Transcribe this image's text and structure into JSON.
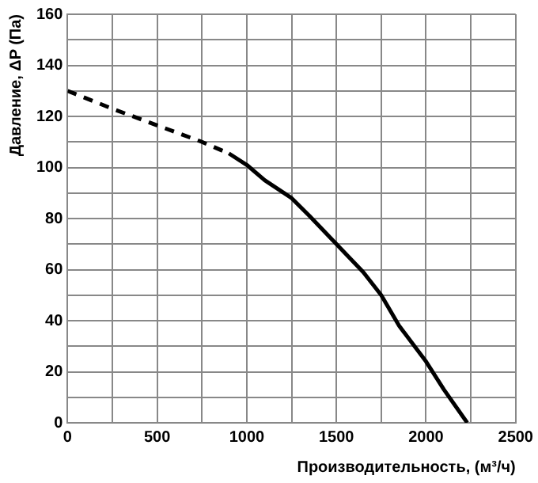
{
  "chart_data": {
    "type": "line",
    "xlabel": "Производительность, (м³/ч)",
    "ylabel": "Давление, ΔP (Па)",
    "xlim": [
      0,
      2500
    ],
    "ylim": [
      0,
      160
    ],
    "xticks": [
      0,
      {
        "value": 250,
        "label": null
      },
      500,
      {
        "value": 750,
        "label": null
      },
      1000,
      {
        "value": 1250,
        "label": null
      },
      1500,
      {
        "value": 1750,
        "label": null
      },
      2000,
      {
        "value": 2250,
        "label": null
      },
      2500
    ],
    "yticks": [
      0,
      {
        "value": 10,
        "label": null
      },
      20,
      {
        "value": 30,
        "label": null
      },
      40,
      {
        "value": 50,
        "label": null
      },
      60,
      {
        "value": 70,
        "label": null
      },
      80,
      {
        "value": 90,
        "label": null
      },
      100,
      {
        "value": 110,
        "label": null
      },
      120,
      {
        "value": 130,
        "label": null
      },
      140,
      {
        "value": 150,
        "label": null
      },
      160
    ],
    "grid": true,
    "legend": false,
    "marker": "none",
    "series": [
      {
        "color": "#000000",
        "line_style": "dashed",
        "x": [
          0,
          250,
          500,
          750,
          900
        ],
        "values": [
          130,
          123,
          116.5,
          110,
          105.5
        ]
      },
      {
        "color": "#000000",
        "line_style": "solid",
        "x": [
          900,
          1000,
          1100,
          1250,
          1350,
          1500,
          1650,
          1750,
          1850,
          2000,
          2100,
          2230
        ],
        "values": [
          105.5,
          101,
          95,
          88,
          81,
          70,
          59,
          50,
          38,
          24,
          13,
          0
        ]
      }
    ]
  }
}
